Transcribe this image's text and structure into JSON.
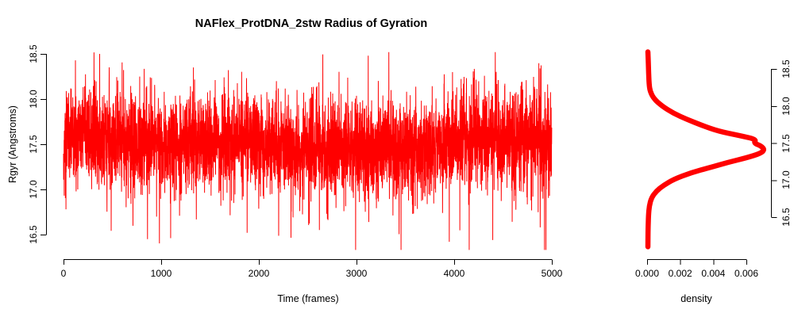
{
  "colors": {
    "series": "#FF0000",
    "axes": "#000000",
    "text": "#000000",
    "background": "#FFFFFF"
  },
  "chart_data": [
    {
      "type": "line",
      "panel": "timeseries",
      "title": "NAFlex_ProtDNA_2stw Radius of Gyration",
      "xlabel": "Time (frames)",
      "ylabel": "Rgyr (Angstroms)",
      "xlim": [
        0,
        5000
      ],
      "ylim": [
        16.33,
        18.52
      ],
      "xticks": [
        0,
        1000,
        2000,
        3000,
        4000,
        5000
      ],
      "xtick_labels": [
        "0",
        "1000",
        "2000",
        "3000",
        "4000",
        "5000"
      ],
      "yticks": [
        16.5,
        17.0,
        17.5,
        18.0,
        18.5
      ],
      "ytick_labels": [
        "16.5",
        "17.0",
        "17.5",
        "18.0",
        "18.5"
      ],
      "grid": false,
      "legend": "none",
      "line_color": "#FF0000",
      "series": {
        "name": "Rgyr",
        "n": 5000,
        "mean": 17.5,
        "sd": 0.26,
        "min": 16.33,
        "max": 18.52,
        "seed": 1337,
        "extremes": [
          [
            25,
            16.78
          ],
          [
            370,
            18.5
          ],
          [
            860,
            16.45
          ],
          [
            1330,
            18.35
          ],
          [
            1880,
            16.52
          ],
          [
            2620,
            16.55
          ],
          [
            3120,
            18.48
          ],
          [
            3950,
            16.42
          ],
          [
            4430,
            18.3
          ],
          [
            4940,
            16.33
          ]
        ]
      }
    },
    {
      "type": "line",
      "panel": "density",
      "title": "",
      "xlabel": "density",
      "ylabel": "",
      "xlim": [
        0,
        0.0075
      ],
      "ylim": [
        16.1,
        18.8
      ],
      "xticks": [
        0,
        0.002,
        0.004,
        0.006
      ],
      "xtick_labels": [
        "0.000",
        "0.002",
        "0.004",
        "0.006"
      ],
      "yticks": [
        16.5,
        17.0,
        17.5,
        18.0,
        18.5
      ],
      "ytick_labels": [
        "16.5",
        "17.0",
        "17.5",
        "18.0",
        "18.5"
      ],
      "grid": false,
      "legend": "none",
      "line_color": "#FF0000",
      "points": [
        [
          5e-05,
          18.73
        ],
        [
          7e-05,
          18.6
        ],
        [
          9e-05,
          18.45
        ],
        [
          0.00012,
          18.3
        ],
        [
          0.00018,
          18.2
        ],
        [
          0.0004,
          18.1
        ],
        [
          0.0009,
          18.0
        ],
        [
          0.0016,
          17.9
        ],
        [
          0.0024,
          17.82
        ],
        [
          0.0033,
          17.74
        ],
        [
          0.0043,
          17.66
        ],
        [
          0.0056,
          17.6
        ],
        [
          0.0066,
          17.55
        ],
        [
          0.00645,
          17.5
        ],
        [
          0.0069,
          17.46
        ],
        [
          0.0071,
          17.41
        ],
        [
          0.00685,
          17.36
        ],
        [
          0.006,
          17.3
        ],
        [
          0.0049,
          17.24
        ],
        [
          0.0038,
          17.17
        ],
        [
          0.00265,
          17.1
        ],
        [
          0.0016,
          17.01
        ],
        [
          0.001,
          16.93
        ],
        [
          0.00055,
          16.85
        ],
        [
          0.00026,
          16.76
        ],
        [
          0.00013,
          16.65
        ],
        [
          8e-05,
          16.52
        ],
        [
          6e-05,
          16.35
        ],
        [
          5e-05,
          16.1
        ]
      ]
    }
  ]
}
